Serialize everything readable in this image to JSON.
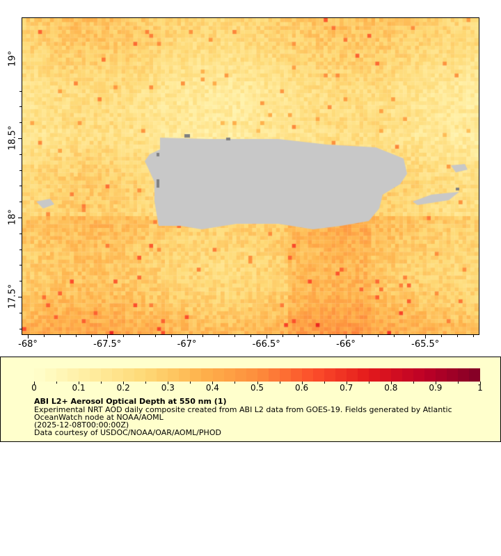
{
  "map": {
    "lon_ticks": [
      "-68°",
      "-67.5°",
      "-67°",
      "-66.5°",
      "-66°",
      "-65.5°"
    ],
    "lat_ticks": [
      "19°",
      "18.5°",
      "18°",
      "17.5°"
    ],
    "land_color": "#c8c8c8",
    "missing_color": "#808080"
  },
  "legend": {
    "colorbar_ticks": [
      "0",
      "0.1",
      "0.2",
      "0.3",
      "0.4",
      "0.5",
      "0.6",
      "0.7",
      "0.8",
      "0.9",
      "1"
    ],
    "colorbar_range": [
      0,
      1
    ],
    "colormap": [
      "#ffffcc",
      "#ffeda0",
      "#fed976",
      "#feb24c",
      "#fd8d3c",
      "#fc4e2a",
      "#e31a1c",
      "#bd0026",
      "#800026"
    ],
    "title": "ABI L2+ Aerosol Optical Depth at 550 nm (1)",
    "line1": "Experimental NRT AOD daily composite created from ABI L2 data from GOES-19. Fields generated by Atlantic",
    "line2": "OceanWatch node at NOAA/AOML",
    "line3": "(2025-12-08T00:00:00Z)",
    "line4": "Data courtesy of USDOC/NOAA/OAR/AOML/PHOD"
  }
}
